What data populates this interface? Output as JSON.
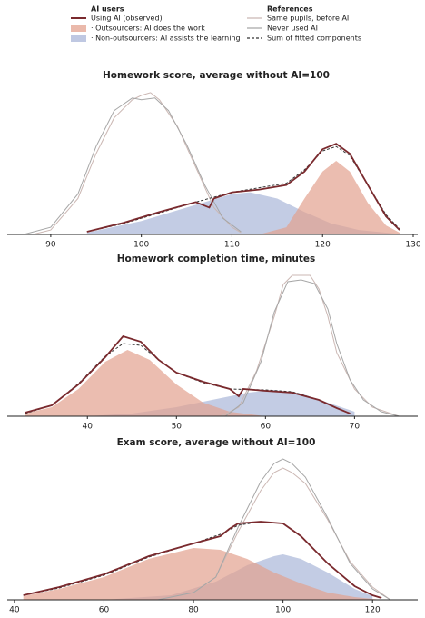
{
  "legend": {
    "groups": [
      {
        "title": "AI users",
        "entries": [
          {
            "label": "Using AI (observed)",
            "color": "#7a2a2e",
            "style": "line"
          },
          {
            "label": "· Outsourcers: AI does the work",
            "color": "#e3a18f",
            "style": "patch"
          },
          {
            "label": "· Non-outsourcers: AI assists the learning",
            "color": "#aab6d8",
            "style": "patch"
          }
        ]
      },
      {
        "title": "References",
        "entries": [
          {
            "label": "Same pupils, before AI",
            "color": "#cbb7b3",
            "style": "line"
          },
          {
            "label": "Never used AI",
            "color": "#a6a6a6",
            "style": "line"
          },
          {
            "label": "Sum of fitted components",
            "color": "#333333",
            "style": "dashed"
          }
        ]
      }
    ]
  },
  "chart_data": [
    {
      "type": "density",
      "title": "Homework score, average without AI=100",
      "xlim": [
        85.2,
        130.5
      ],
      "ylim": [
        0,
        165
      ],
      "xticks": [
        90,
        100,
        110,
        120,
        130
      ],
      "series": [
        {
          "color": "#aab6d8",
          "style": "area",
          "x": [
            94,
            100,
            105,
            110,
            112,
            115,
            118,
            121,
            124,
            128
          ],
          "values": [
            2,
            15,
            30,
            45,
            47,
            40,
            25,
            12,
            5,
            1
          ]
        },
        {
          "color": "#e3a18f",
          "style": "area",
          "x": [
            113,
            116,
            118,
            120,
            121.5,
            123,
            125,
            127,
            128.5
          ],
          "values": [
            0,
            8,
            40,
            70,
            82,
            70,
            35,
            10,
            2
          ]
        },
        {
          "color": "#cbb7b3",
          "style": "line",
          "x": [
            88,
            90,
            93,
            95,
            97,
            99,
            100,
            101,
            102,
            104,
            106,
            108,
            110,
            111
          ],
          "values": [
            0,
            5,
            40,
            90,
            130,
            150,
            155,
            158,
            150,
            120,
            75,
            30,
            8,
            2
          ]
        },
        {
          "color": "#a6a6a6",
          "style": "line",
          "x": [
            87,
            90,
            93,
            95,
            97,
            99,
            100,
            101.5,
            103,
            105,
            107,
            109,
            111
          ],
          "values": [
            0,
            8,
            45,
            98,
            138,
            152,
            150,
            152,
            138,
            100,
            55,
            18,
            3
          ]
        },
        {
          "color": "#333333",
          "style": "dashed",
          "x": [
            94,
            98,
            102,
            106,
            110,
            113,
            116,
            118,
            120,
            121.5,
            123,
            125,
            127,
            128.5
          ],
          "values": [
            3,
            12,
            24,
            36,
            47,
            52,
            57,
            72,
            93,
            98,
            88,
            55,
            22,
            6
          ]
        },
        {
          "color": "#7a2a2e",
          "style": "line",
          "x": [
            94,
            98,
            102,
            106,
            107.5,
            108,
            110,
            113,
            116,
            118,
            120,
            121.5,
            123,
            125,
            127,
            128.5
          ],
          "values": [
            3,
            13,
            25,
            36,
            30,
            40,
            47,
            50,
            55,
            70,
            95,
            101,
            90,
            55,
            20,
            5
          ]
        }
      ]
    },
    {
      "type": "density",
      "title": "Homework completion time, minutes",
      "xlim": [
        31,
        77.1
      ],
      "ylim": [
        0,
        165
      ],
      "xticks": [
        40,
        50,
        60,
        70
      ],
      "series": [
        {
          "color": "#aab6d8",
          "style": "area",
          "x": [
            40,
            45,
            50,
            55,
            58,
            61,
            64,
            67,
            70
          ],
          "values": [
            0,
            3,
            10,
            20,
            26,
            29,
            25,
            15,
            5
          ]
        },
        {
          "color": "#e3a18f",
          "style": "area",
          "x": [
            33,
            36,
            39,
            42,
            44.5,
            47,
            50,
            53,
            56,
            60
          ],
          "values": [
            3,
            10,
            30,
            60,
            73,
            62,
            35,
            15,
            5,
            0
          ]
        },
        {
          "color": "#cbb7b3",
          "style": "line",
          "x": [
            55,
            57,
            59,
            61,
            62,
            63,
            65,
            66,
            67,
            68,
            70,
            72,
            75
          ],
          "values": [
            0,
            10,
            50,
            110,
            145,
            155,
            155,
            140,
            110,
            70,
            30,
            10,
            0
          ]
        },
        {
          "color": "#a6a6a6",
          "style": "line",
          "x": [
            55.5,
            57.5,
            59.5,
            61,
            62.5,
            64,
            65.5,
            67,
            68,
            69.5,
            71,
            73,
            75
          ],
          "values": [
            0,
            15,
            60,
            115,
            148,
            150,
            146,
            118,
            80,
            40,
            18,
            5,
            0
          ]
        },
        {
          "color": "#333333",
          "style": "dashed",
          "x": [
            33,
            36,
            39,
            42,
            44,
            46,
            48,
            50,
            53,
            56,
            60,
            63,
            66,
            68,
            69.5
          ],
          "values": [
            3,
            12,
            36,
            66,
            80,
            78,
            62,
            48,
            37,
            30,
            29,
            27,
            18,
            9,
            3
          ]
        },
        {
          "color": "#7a2a2e",
          "style": "line",
          "x": [
            33,
            36,
            39,
            42,
            44,
            46,
            48,
            50,
            53,
            56,
            57,
            57.5,
            60,
            63,
            66,
            68,
            69.5
          ],
          "values": [
            4,
            12,
            35,
            65,
            88,
            82,
            62,
            48,
            38,
            30,
            22,
            30,
            28,
            26,
            18,
            9,
            3
          ]
        }
      ]
    },
    {
      "type": "density",
      "title": "Exam score, average without AI=100",
      "xlim": [
        38.4,
        130.1
      ],
      "ylim": [
        0,
        165
      ],
      "xticks": [
        40,
        60,
        80,
        100,
        120
      ],
      "series": [
        {
          "color": "#aab6d8",
          "style": "area",
          "x": [
            60,
            75,
            85,
            92,
            98,
            100,
            104,
            110,
            116,
            120
          ],
          "values": [
            0,
            5,
            20,
            38,
            48,
            50,
            45,
            30,
            12,
            4
          ]
        },
        {
          "color": "#e3a18f",
          "style": "area",
          "x": [
            42,
            50,
            60,
            70,
            80,
            86,
            92,
            98,
            104,
            110,
            116,
            122
          ],
          "values": [
            4,
            12,
            25,
            45,
            57,
            55,
            45,
            30,
            18,
            8,
            3,
            0
          ]
        },
        {
          "color": "#cbb7b3",
          "style": "line",
          "x": [
            72,
            80,
            85,
            90,
            95,
            98,
            100,
            102,
            105,
            110,
            115,
            120,
            124
          ],
          "values": [
            0,
            8,
            25,
            75,
            120,
            140,
            145,
            140,
            128,
            88,
            42,
            14,
            0
          ]
        },
        {
          "color": "#a6a6a6",
          "style": "line",
          "x": [
            72,
            80,
            85,
            90,
            95,
            98,
            100,
            102,
            105,
            110,
            115,
            120,
            124
          ],
          "values": [
            0,
            8,
            25,
            80,
            130,
            150,
            155,
            150,
            135,
            90,
            40,
            12,
            0
          ]
        },
        {
          "color": "#333333",
          "style": "dashed",
          "x": [
            42,
            50,
            60,
            70,
            80,
            86,
            90,
            95,
            100,
            104,
            110,
            116,
            120,
            122
          ],
          "values": [
            5,
            13,
            27,
            47,
            62,
            72,
            82,
            86,
            84,
            70,
            40,
            15,
            5,
            2
          ]
        },
        {
          "color": "#7a2a2e",
          "style": "line",
          "x": [
            42,
            50,
            60,
            70,
            80,
            86,
            88,
            90,
            95,
            100,
            104,
            110,
            116,
            120,
            122
          ],
          "values": [
            5,
            14,
            28,
            48,
            62,
            70,
            78,
            84,
            86,
            84,
            70,
            40,
            15,
            5,
            2
          ]
        }
      ]
    }
  ]
}
